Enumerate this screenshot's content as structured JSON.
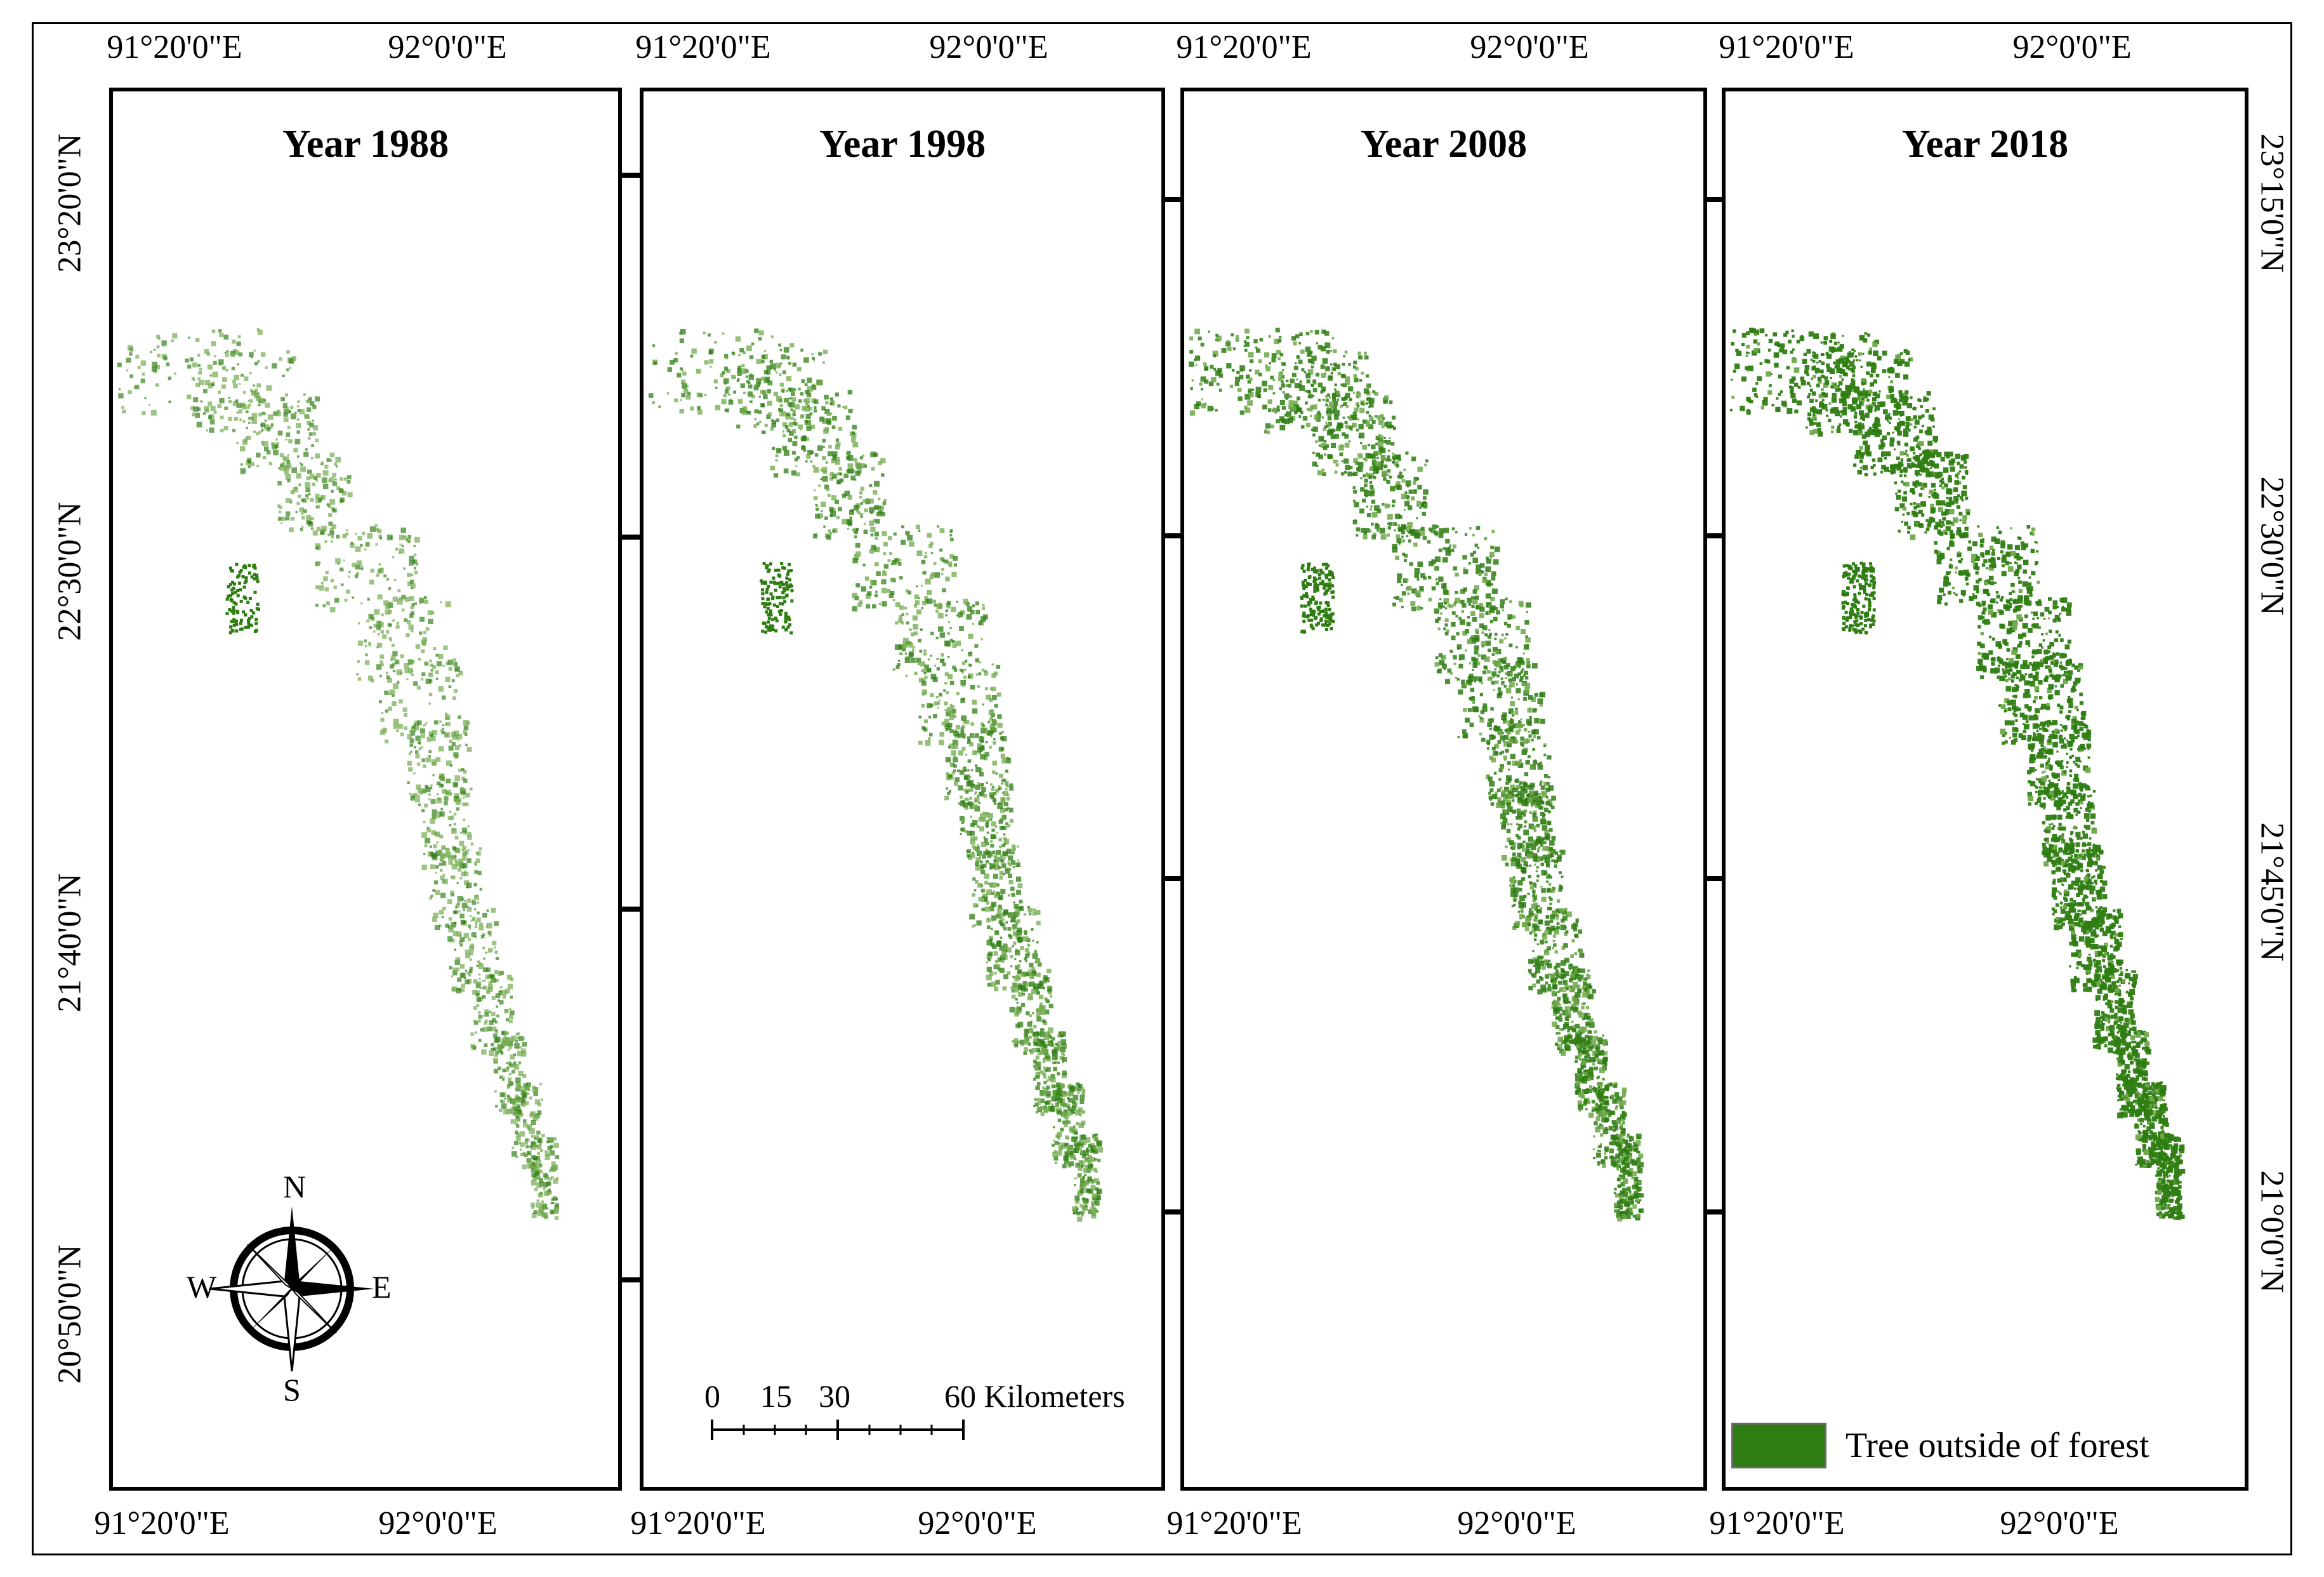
{
  "map": {
    "panels": [
      {
        "title": "Year 1988",
        "density": 0.35
      },
      {
        "title": "Year 1998",
        "density": 0.5
      },
      {
        "title": "Year 2008",
        "density": 0.7
      },
      {
        "title": "Year 2018",
        "density": 0.9
      }
    ],
    "lon_ticks": {
      "a": "91°20'0\"E",
      "b": "92°0'0\"E"
    },
    "lat_left": [
      "23°20'0\"N",
      "22°30'0\"N",
      "21°40'0\"N",
      "20°50'0\"N"
    ],
    "lat_right": [
      "23°15'0\"N",
      "22°30'0\"N",
      "21°45'0\"N",
      "21°0'0\"N"
    ],
    "compass": {
      "n": "N",
      "s": "S",
      "e": "E",
      "w": "W"
    },
    "scale": {
      "labels": [
        "0",
        "15",
        "30",
        "60 Kilometers"
      ],
      "ticks": [
        0,
        15,
        30,
        60
      ]
    },
    "legend": {
      "label": "Tree outside of forest",
      "color": "#2e7d12"
    },
    "colors": {
      "forest_dark": "#2e7d12",
      "forest_light": "#6fa84a"
    }
  }
}
